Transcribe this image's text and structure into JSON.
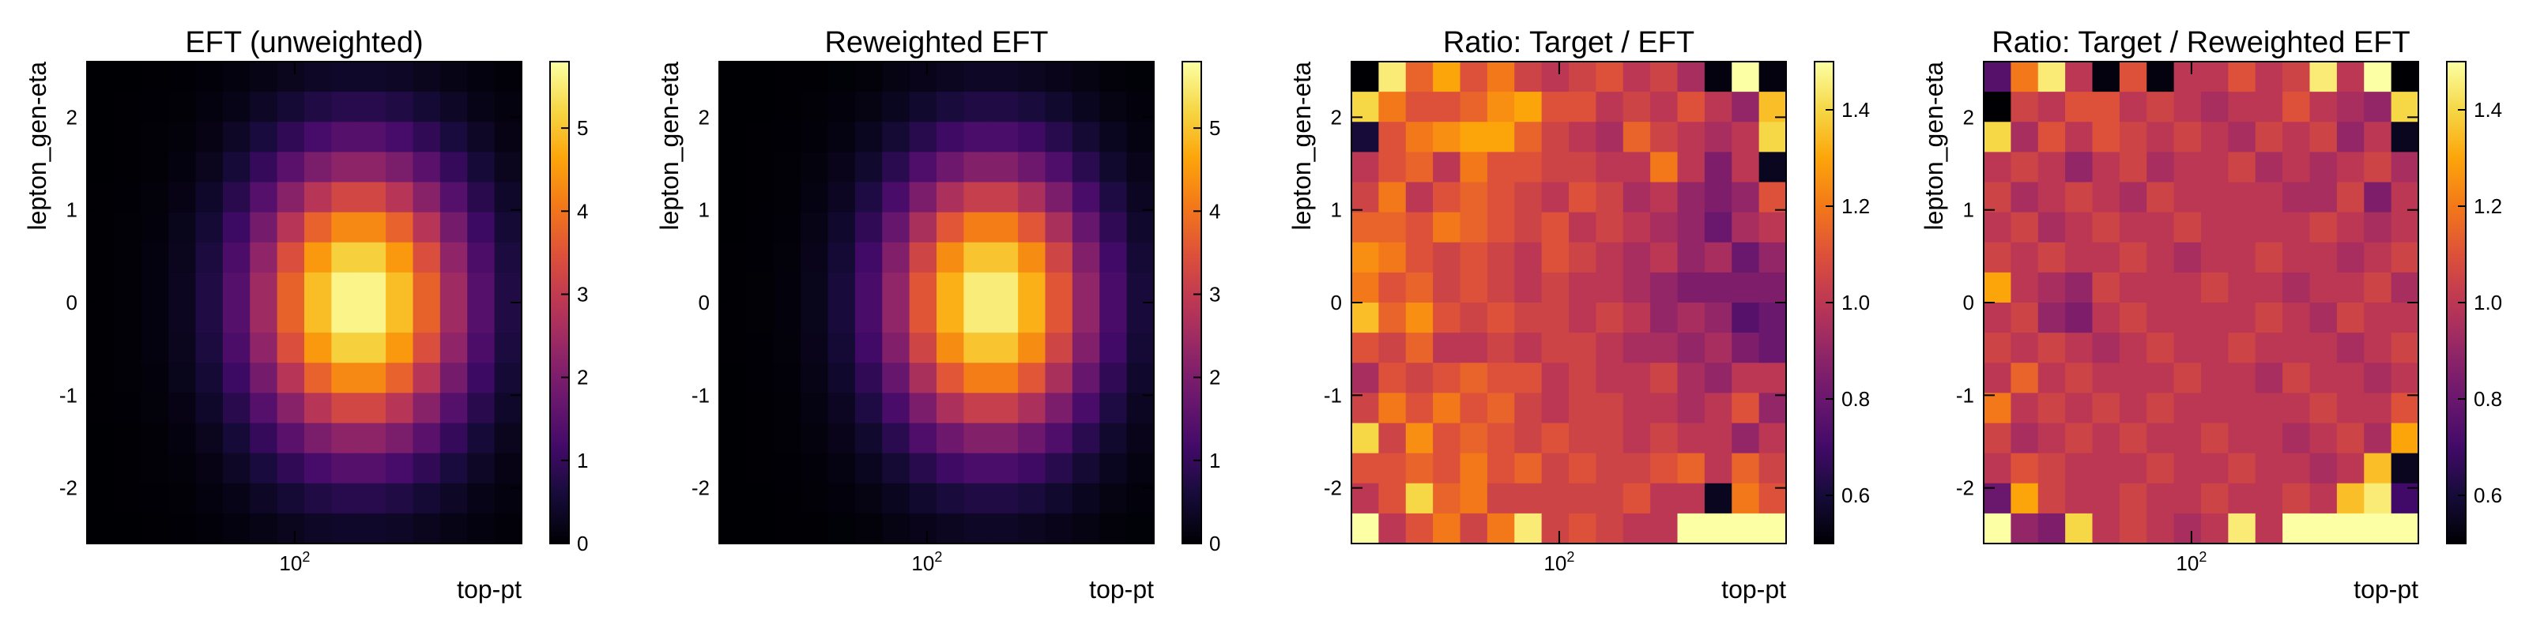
{
  "figure": {
    "panel_count": 4
  },
  "chart_data": [
    {
      "type": "heatmap",
      "title": "EFT (unweighted)",
      "xlabel": "top-pt",
      "ylabel": "lepton_gen-eta",
      "x_scale": "log",
      "x_tick_labels": [
        "10^2"
      ],
      "y_tick_labels": [
        "-2",
        "-1",
        "0",
        "1",
        "2"
      ],
      "ylim": [
        -2.6,
        2.6
      ],
      "colorbar": {
        "min": 0,
        "max": 5.8,
        "ticks": [
          "0",
          "1",
          "2",
          "3",
          "4",
          "5"
        ],
        "colormap": "inferno"
      },
      "grid_bins": {
        "nx": 16,
        "ny": 16
      },
      "distribution": {
        "peak_x_bin": 9.5,
        "peak_y_bin": 7.5,
        "sigma_x_bins": 2.7,
        "sigma_y_bins": 3.3,
        "peak_value": 5.8
      }
    },
    {
      "type": "heatmap",
      "title": "Reweighted EFT",
      "xlabel": "top-pt",
      "ylabel": "lepton_gen-eta",
      "x_scale": "log",
      "x_tick_labels": [
        "10^2"
      ],
      "y_tick_labels": [
        "-2",
        "-1",
        "0",
        "1",
        "2"
      ],
      "ylim": [
        -2.6,
        2.6
      ],
      "colorbar": {
        "min": 0,
        "max": 5.8,
        "ticks": [
          "0",
          "1",
          "2",
          "3",
          "4",
          "5"
        ],
        "colormap": "inferno"
      },
      "grid_bins": {
        "nx": 16,
        "ny": 16
      },
      "distribution": {
        "peak_x_bin": 9.5,
        "peak_y_bin": 7.5,
        "sigma_x_bins": 2.6,
        "sigma_y_bins": 3.2,
        "peak_value": 5.7
      }
    },
    {
      "type": "heatmap",
      "title": "Ratio: Target / EFT",
      "xlabel": "top-pt",
      "ylabel": "lepton_gen-eta",
      "x_scale": "log",
      "x_tick_labels": [
        "10^2"
      ],
      "y_tick_labels": [
        "-2",
        "-1",
        "0",
        "1",
        "2"
      ],
      "ylim": [
        -2.6,
        2.6
      ],
      "colorbar": {
        "min": 0.5,
        "max": 1.5,
        "ticks": [
          "0.6",
          "0.8",
          "1.0",
          "1.2",
          "1.4"
        ],
        "colormap": "inferno"
      },
      "grid_bins": {
        "nx": 16,
        "ny": 16
      },
      "ratio_values_rows_top_to_bottom": [
        [
          0.5,
          1.45,
          1.15,
          1.3,
          1.1,
          1.2,
          1.05,
          1.0,
          1.05,
          1.1,
          1.0,
          1.05,
          0.95,
          0.52,
          1.5,
          0.52
        ],
        [
          1.4,
          1.2,
          1.1,
          1.1,
          1.15,
          1.25,
          1.3,
          1.1,
          1.1,
          1.0,
          1.05,
          1.0,
          1.1,
          1.0,
          0.9,
          1.35
        ],
        [
          0.6,
          1.1,
          1.2,
          1.25,
          1.3,
          1.3,
          1.15,
          1.05,
          1.0,
          0.95,
          1.15,
          1.05,
          1.0,
          0.95,
          1.0,
          1.4
        ],
        [
          1.0,
          1.1,
          1.15,
          1.0,
          1.2,
          1.1,
          1.1,
          1.05,
          1.05,
          1.0,
          1.0,
          1.2,
          1.0,
          0.85,
          1.0,
          0.55
        ],
        [
          1.05,
          1.2,
          1.0,
          1.1,
          1.15,
          1.1,
          1.05,
          1.0,
          1.1,
          1.05,
          0.95,
          1.0,
          0.9,
          0.85,
          0.9,
          1.1
        ],
        [
          1.15,
          1.15,
          1.1,
          1.2,
          1.15,
          1.1,
          1.05,
          1.1,
          1.0,
          1.05,
          1.0,
          0.95,
          0.9,
          0.8,
          0.95,
          1.0
        ],
        [
          1.25,
          1.2,
          1.1,
          1.05,
          1.1,
          1.05,
          1.0,
          1.1,
          1.05,
          1.0,
          0.95,
          1.0,
          0.9,
          0.95,
          0.8,
          0.9
        ],
        [
          1.2,
          1.1,
          1.15,
          1.05,
          1.1,
          1.05,
          1.0,
          1.05,
          1.0,
          1.0,
          0.95,
          0.9,
          0.85,
          0.85,
          0.85,
          0.85
        ],
        [
          1.35,
          1.15,
          1.25,
          1.1,
          1.05,
          1.1,
          1.05,
          1.05,
          1.0,
          1.05,
          1.0,
          0.9,
          0.95,
          0.9,
          0.75,
          0.8
        ],
        [
          1.1,
          1.05,
          1.15,
          1.0,
          1.0,
          1.05,
          1.0,
          1.05,
          1.05,
          1.0,
          0.95,
          0.95,
          0.9,
          0.95,
          0.85,
          0.8
        ],
        [
          0.95,
          1.1,
          1.05,
          1.1,
          1.15,
          1.1,
          1.1,
          1.0,
          1.05,
          1.0,
          1.0,
          1.05,
          0.95,
          0.9,
          1.0,
          1.0
        ],
        [
          1.05,
          1.2,
          1.1,
          1.2,
          1.1,
          1.15,
          1.05,
          1.0,
          1.05,
          1.05,
          1.0,
          1.0,
          0.95,
          1.0,
          1.1,
          0.9
        ],
        [
          1.4,
          1.05,
          1.25,
          1.1,
          1.15,
          1.1,
          1.05,
          1.1,
          1.05,
          1.05,
          1.0,
          1.05,
          1.0,
          1.0,
          0.9,
          1.0
        ],
        [
          1.1,
          1.1,
          1.15,
          1.1,
          1.2,
          1.1,
          1.15,
          1.05,
          1.1,
          1.05,
          1.05,
          1.1,
          1.15,
          1.0,
          1.15,
          1.05
        ],
        [
          1.0,
          1.1,
          1.4,
          1.15,
          1.2,
          1.05,
          1.05,
          1.05,
          1.05,
          1.05,
          1.1,
          1.0,
          1.0,
          0.55,
          1.2,
          1.1
        ],
        [
          1.5,
          1.0,
          1.1,
          1.2,
          1.05,
          1.2,
          1.45,
          1.05,
          1.1,
          1.05,
          1.0,
          1.0,
          1.5,
          1.5,
          1.5,
          1.5
        ]
      ]
    },
    {
      "type": "heatmap",
      "title": "Ratio: Target / Reweighted EFT",
      "xlabel": "top-pt",
      "ylabel": "lepton_gen-eta",
      "x_scale": "log",
      "x_tick_labels": [
        "10^2"
      ],
      "y_tick_labels": [
        "-2",
        "-1",
        "0",
        "1",
        "2"
      ],
      "ylim": [
        -2.6,
        2.6
      ],
      "colorbar": {
        "min": 0.5,
        "max": 1.5,
        "ticks": [
          "0.6",
          "0.8",
          "1.0",
          "1.2",
          "1.4"
        ],
        "colormap": "inferno"
      },
      "grid_bins": {
        "nx": 16,
        "ny": 16
      },
      "ratio_values_rows_top_to_bottom": [
        [
          0.75,
          1.2,
          1.45,
          1.0,
          0.52,
          1.1,
          0.52,
          1.0,
          1.0,
          1.1,
          1.0,
          1.05,
          1.45,
          1.0,
          1.5,
          0.5
        ],
        [
          0.5,
          1.05,
          1.0,
          1.1,
          1.1,
          1.0,
          1.05,
          1.0,
          0.95,
          1.0,
          1.0,
          1.1,
          1.0,
          0.95,
          0.9,
          1.4
        ],
        [
          1.4,
          0.95,
          1.1,
          1.0,
          1.1,
          1.05,
          1.0,
          1.05,
          1.0,
          0.95,
          1.05,
          1.0,
          1.05,
          0.9,
          1.0,
          0.55
        ],
        [
          1.0,
          1.05,
          1.0,
          0.9,
          1.0,
          1.05,
          0.95,
          1.0,
          1.0,
          1.05,
          0.95,
          1.0,
          0.95,
          1.0,
          1.05,
          0.95
        ],
        [
          1.05,
          0.95,
          1.0,
          1.05,
          1.0,
          0.95,
          1.05,
          1.0,
          1.0,
          1.0,
          1.0,
          0.95,
          0.95,
          1.05,
          0.85,
          1.0
        ],
        [
          1.0,
          1.05,
          0.95,
          1.0,
          1.05,
          1.0,
          1.0,
          1.05,
          1.0,
          1.0,
          1.0,
          1.0,
          1.05,
          1.0,
          0.95,
          1.0
        ],
        [
          1.05,
          1.0,
          1.05,
          1.0,
          1.0,
          1.05,
          1.0,
          0.95,
          1.0,
          1.0,
          1.05,
          1.0,
          1.0,
          0.95,
          1.0,
          1.05
        ],
        [
          1.3,
          1.0,
          0.95,
          0.9,
          1.05,
          1.0,
          1.0,
          1.0,
          1.05,
          1.0,
          1.0,
          0.95,
          1.0,
          1.0,
          1.05,
          0.95
        ],
        [
          1.0,
          1.05,
          0.9,
          0.85,
          1.0,
          1.05,
          1.0,
          1.0,
          1.0,
          1.0,
          1.05,
          1.0,
          0.95,
          1.05,
          1.0,
          1.0
        ],
        [
          1.05,
          1.0,
          1.05,
          1.0,
          0.95,
          1.0,
          1.05,
          1.0,
          1.0,
          1.05,
          1.0,
          1.0,
          1.0,
          0.95,
          1.0,
          1.05
        ],
        [
          1.0,
          1.15,
          1.0,
          1.05,
          1.0,
          1.0,
          1.0,
          1.05,
          1.0,
          1.0,
          0.95,
          1.05,
          1.0,
          1.0,
          0.95,
          1.0
        ],
        [
          1.2,
          1.0,
          1.05,
          1.0,
          1.05,
          1.0,
          1.05,
          1.0,
          1.0,
          1.0,
          1.0,
          1.0,
          1.05,
          1.0,
          1.0,
          1.1
        ],
        [
          1.05,
          0.95,
          1.0,
          1.05,
          1.0,
          1.05,
          1.0,
          1.0,
          1.05,
          1.0,
          1.0,
          0.95,
          1.0,
          1.05,
          0.95,
          1.3
        ],
        [
          1.0,
          1.1,
          1.05,
          1.0,
          1.0,
          1.0,
          1.05,
          1.0,
          1.0,
          1.05,
          1.0,
          1.0,
          0.95,
          1.0,
          1.35,
          0.55
        ],
        [
          0.8,
          1.3,
          1.05,
          1.0,
          1.0,
          1.05,
          1.0,
          1.0,
          1.05,
          1.0,
          1.0,
          1.05,
          1.0,
          1.35,
          1.45,
          0.7
        ],
        [
          1.5,
          0.9,
          0.85,
          1.4,
          1.0,
          1.05,
          1.0,
          0.95,
          1.0,
          1.45,
          1.0,
          1.5,
          1.5,
          1.5,
          1.5,
          1.5
        ]
      ]
    }
  ]
}
